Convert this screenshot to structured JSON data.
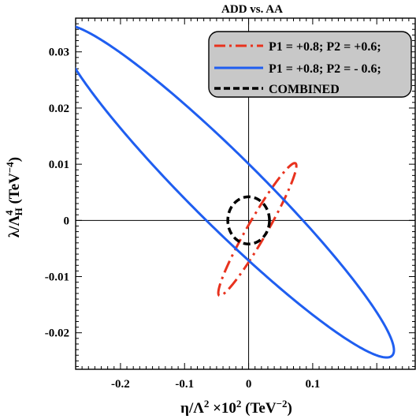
{
  "chart_data": {
    "type": "line",
    "title": "ADD vs. AA",
    "xlabel": "η/Λ² ×10² (TeV⁻²)",
    "ylabel": "λ/Λ⁴H (TeV⁻⁴)",
    "xlim": [
      -0.27,
      0.26
    ],
    "ylim": [
      -0.0265,
      0.036
    ],
    "x_ticks": [
      -0.2,
      -0.1,
      0,
      0.1
    ],
    "x_tick_labels": [
      "-0.2",
      "-0.1",
      "0",
      "0.1"
    ],
    "y_ticks": [
      -0.02,
      -0.01,
      0,
      0.01,
      0.02,
      0.03
    ],
    "y_tick_labels": [
      "-0.02",
      "-0.01",
      "0",
      "0.01",
      "0.02",
      "0.03"
    ],
    "grid": false,
    "zero_lines": true,
    "legend_position": "top-right",
    "series": [
      {
        "name": "P1 = +0.8;  P2 = +0.6;",
        "color": "#e8321e",
        "style": "dash-dot",
        "shape": "ellipse",
        "center": [
          0.0136,
          -0.0016
        ],
        "x_extreme_points": [
          [
            -0.0445,
            -0.0085
          ],
          [
            0.0745,
            0.0097
          ]
        ],
        "y_extreme_points": [
          [
            0.065,
            0.0102
          ],
          [
            -0.0395,
            -0.0093
          ]
        ],
        "y_axis_crossings": [
          0.0038,
          -0.007
        ]
      },
      {
        "name": "P1 = +0.8;  P2 = - 0.6;",
        "color": "#1f5ef0",
        "style": "solid",
        "shape": "ellipse",
        "center": [
          -0.0345,
          0.0052
        ],
        "x_extreme_points": [
          [
            -0.2558,
            0.0337
          ],
          [
            0.2268,
            -0.0231
          ]
        ],
        "y_extreme_points": [
          [
            -0.2427,
            0.0348
          ],
          [
            0.1737,
            -0.0244
          ]
        ],
        "y_axis_crossings": [
          0.0063,
          -0.0062
        ]
      },
      {
        "name": "COMBINED",
        "color": "#000000",
        "style": "dashed",
        "shape": "ellipse",
        "center": [
          0.0,
          0.0
        ],
        "x_extreme_points": [
          [
            -0.0325,
            0.0
          ],
          [
            0.0325,
            0.0
          ]
        ],
        "y_extreme_points": [
          [
            0.0,
            0.0042
          ],
          [
            0.0,
            -0.0042
          ]
        ],
        "y_axis_crossings": [
          0.0042,
          -0.0042
        ]
      }
    ]
  }
}
